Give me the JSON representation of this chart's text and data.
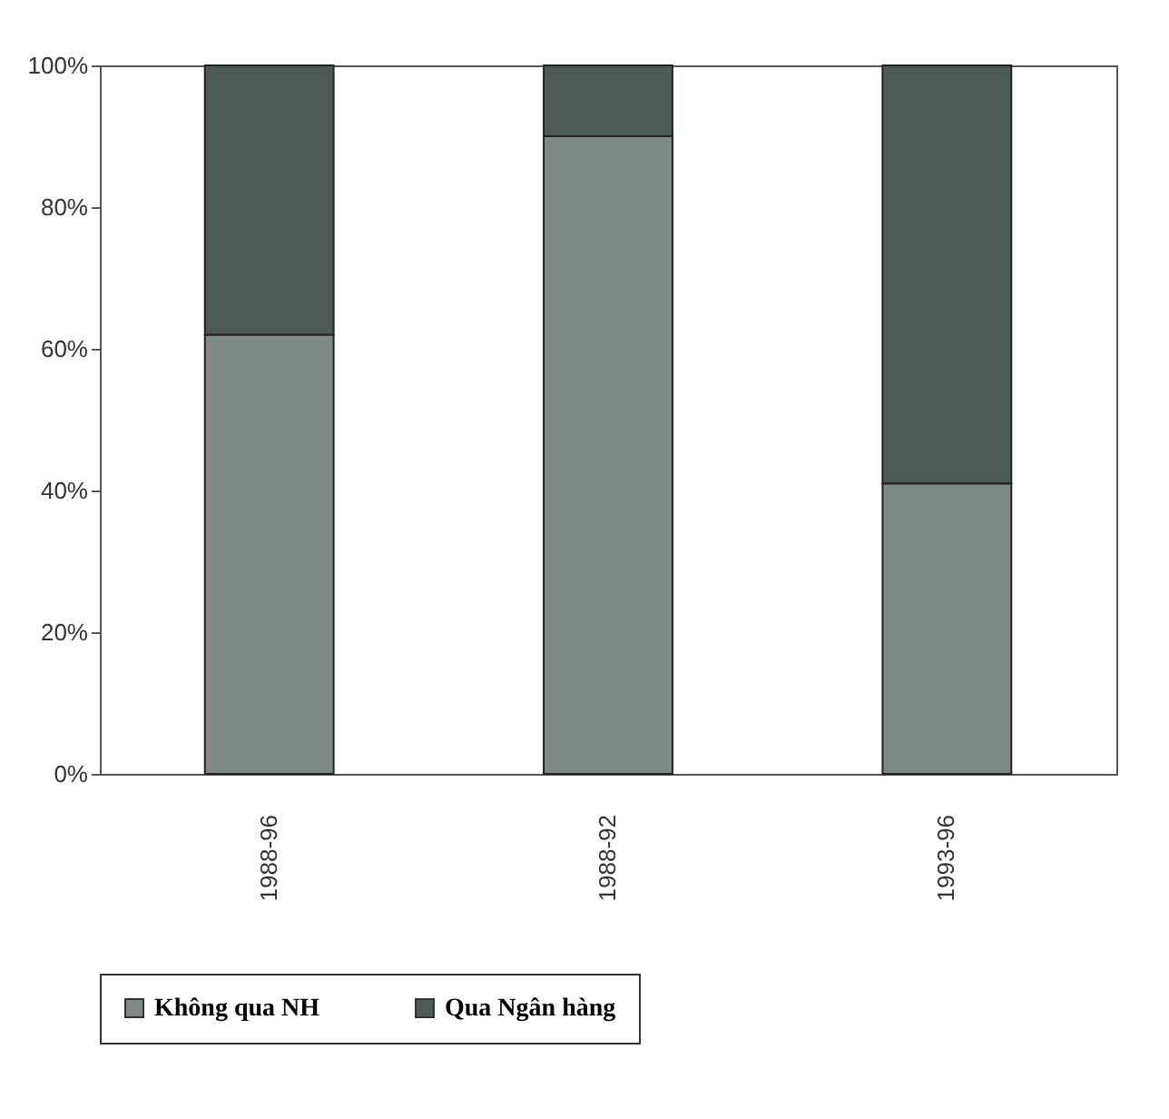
{
  "chart_data": {
    "type": "bar",
    "stacked": true,
    "categories": [
      "1988-96",
      "1988-92",
      "1993-96"
    ],
    "series": [
      {
        "name": "Không qua NH",
        "color": "#7f8a86",
        "values": [
          62,
          90,
          41
        ]
      },
      {
        "name": "Qua Ngân hàng",
        "color": "#4e5a56",
        "values": [
          38,
          10,
          59
        ]
      }
    ],
    "ylim": [
      0,
      100
    ],
    "yticks": [
      {
        "value": 0,
        "label": "0%"
      },
      {
        "value": 20,
        "label": "20%"
      },
      {
        "value": 40,
        "label": "40%"
      },
      {
        "value": 60,
        "label": "60%"
      },
      {
        "value": 80,
        "label": "80%"
      },
      {
        "value": 100,
        "label": "100%"
      }
    ],
    "grid": false,
    "legend": "bottom"
  }
}
